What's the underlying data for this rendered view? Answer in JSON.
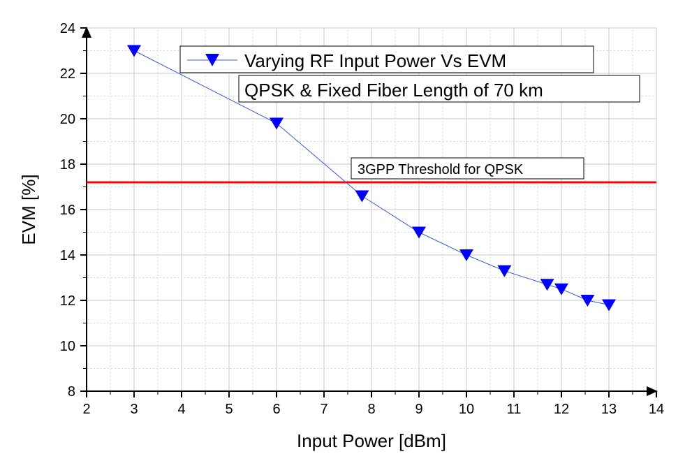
{
  "chart_data": {
    "type": "line",
    "xlabel": "Input Power [dBm]",
    "ylabel": "EVM [%]",
    "xlim": [
      2,
      14
    ],
    "ylim": [
      8,
      24
    ],
    "xticks": [
      2,
      3,
      4,
      5,
      6,
      7,
      8,
      9,
      10,
      11,
      12,
      13,
      14
    ],
    "yticks": [
      8,
      10,
      12,
      14,
      16,
      18,
      20,
      22,
      24
    ],
    "minor_grid": true,
    "series": [
      {
        "name": "Varying RF Input Power Vs EVM",
        "marker": "triangle-down",
        "color": "#0000ff",
        "x": [
          3,
          6,
          7.8,
          9,
          10,
          10.8,
          11.7,
          12,
          12.55,
          13
        ],
        "y": [
          23,
          19.8,
          16.6,
          15,
          14,
          13.3,
          12.7,
          12.5,
          12,
          11.8
        ]
      }
    ],
    "threshold": {
      "label": "3GPP Threshold for QPSK",
      "y": 17.2,
      "color": "#ff0000"
    },
    "legend": {
      "entry": "Varying RF Input Power Vs EVM",
      "subtitle": "QPSK & Fixed Fiber Length of 70 km",
      "placement": "top-right"
    }
  }
}
